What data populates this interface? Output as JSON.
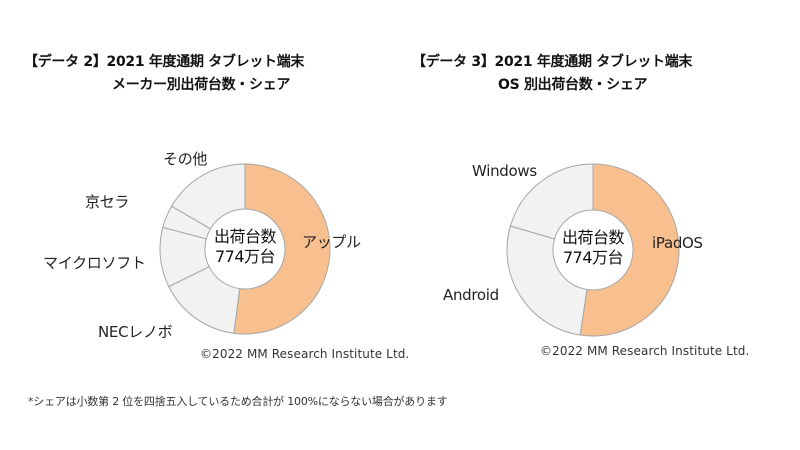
{
  "left": {
    "title_line1": "【データ 2】2021 年度通期  タブレット端末",
    "title_line2": "メーカー別出荷台数・シェア",
    "center_line1": "出荷台数",
    "center_line2": "774万台",
    "labels": [
      "アップル",
      "NECレノボ",
      "マイクロソフト",
      "京セラ",
      "その他"
    ],
    "copyright": "©2022  MM Research Institute Ltd."
  },
  "right": {
    "title_line1": "【データ 3】2021 年度通期  タブレット端末",
    "title_line2": "OS 別出荷台数・シェア",
    "center_line1": "出荷台数",
    "center_line2": "774万台",
    "labels": [
      "iPadOS",
      "Android",
      "Windows"
    ],
    "copyright": "©2022  MM Research Institute Ltd."
  },
  "footnote": "*シェアは小数第 2 位を四捨五入しているため合計が 100%にならない場合があります",
  "colors": {
    "highlight": "#F8C08F",
    "other": "#F2F2F2",
    "stroke": "#A6A6A6"
  },
  "chart_data": [
    {
      "type": "pie",
      "subtype": "donut",
      "title": "【データ 2】2021 年度通期 タブレット端末 メーカー別出荷台数・シェア",
      "center_text": "出荷台数 774万台",
      "total_units": "774万台",
      "categories": [
        "アップル",
        "NECレノボ",
        "マイクロソフト",
        "京セラ",
        "その他"
      ],
      "values": [
        52.1,
        15.6,
        11.4,
        4.3,
        16.6
      ],
      "unit": "% (estimated from slice angles)",
      "colors": [
        "#F8C08F",
        "#F2F2F2",
        "#F2F2F2",
        "#F2F2F2",
        "#F2F2F2"
      ],
      "start_angle": "12 o'clock, clockwise",
      "legend": "none (direct labels)",
      "annotation": "©2022  MM Research Institute Ltd."
    },
    {
      "type": "pie",
      "subtype": "donut",
      "title": "【データ 3】2021 年度通期 タブレット端末 OS 別出荷台数・シェア",
      "center_text": "出荷台数 774万台",
      "total_units": "774万台",
      "categories": [
        "iPadOS",
        "Android",
        "Windows"
      ],
      "values": [
        52.4,
        27.1,
        20.5
      ],
      "unit": "% (estimated from slice angles)",
      "colors": [
        "#F8C08F",
        "#F2F2F2",
        "#F2F2F2"
      ],
      "start_angle": "12 o'clock, clockwise",
      "legend": "none (direct labels)",
      "annotation": "©2022  MM Research Institute Ltd."
    }
  ]
}
